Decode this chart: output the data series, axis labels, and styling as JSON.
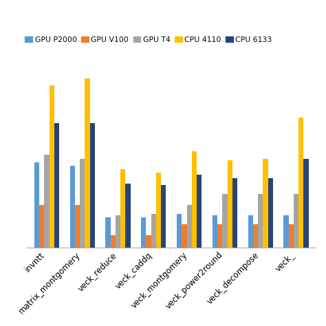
{
  "categories": [
    "invntt",
    "matrix_montgomery",
    "veck_reduce",
    "veck_caddq",
    "veck_montgomery",
    "veck_power2round",
    "veck_decompose",
    "veck_"
  ],
  "series": {
    "GPU P2000": [
      0.48,
      0.46,
      0.17,
      0.17,
      0.19,
      0.18,
      0.18,
      0.18
    ],
    "GPU V100": [
      0.24,
      0.24,
      0.07,
      0.07,
      0.13,
      0.13,
      0.13,
      0.13
    ],
    "GPU T4": [
      0.52,
      0.5,
      0.18,
      0.19,
      0.24,
      0.3,
      0.3,
      0.3
    ],
    "CPU 4110": [
      0.91,
      0.95,
      0.44,
      0.42,
      0.54,
      0.49,
      0.5,
      0.73
    ],
    "CPU 6133": [
      0.7,
      0.7,
      0.36,
      0.35,
      0.41,
      0.39,
      0.39,
      0.5
    ]
  },
  "colors": {
    "GPU P2000": "#5B9BD5",
    "GPU V100": "#ED7D31",
    "GPU T4": "#A5A5A5",
    "CPU 4110": "#FFC000",
    "CPU 6133": "#264478"
  },
  "legend_labels": [
    "GPU P2000",
    "GPU V100",
    "GPU T4",
    "CPU 4110",
    "CPU 6133"
  ],
  "ylim": [
    0,
    1.05
  ],
  "figsize": [
    4.74,
    4.74
  ],
  "dpi": 100,
  "bar_width": 0.14,
  "background_color": "#FFFFFF"
}
